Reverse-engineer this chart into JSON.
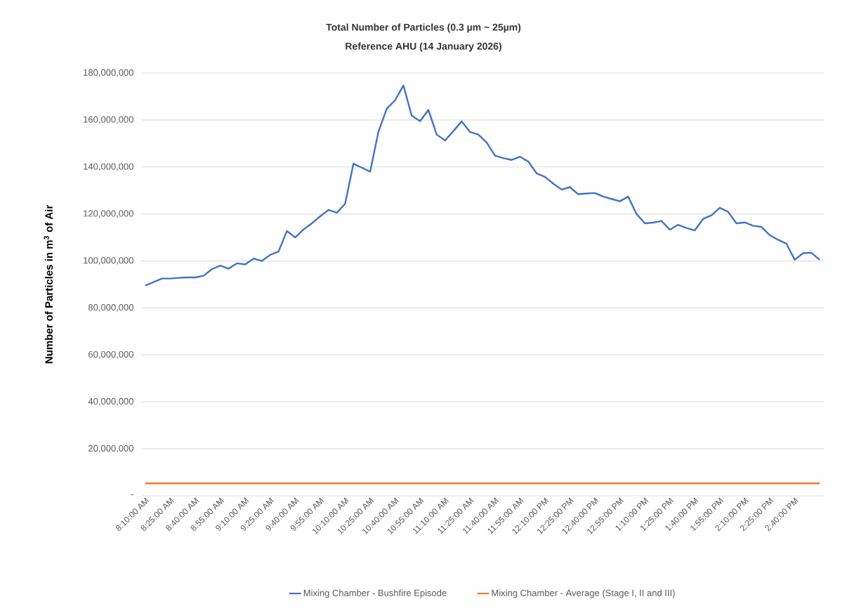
{
  "chart_data": {
    "type": "line",
    "title": "Total Number of Particles (0.3 µm ~ 25µm)",
    "subtitle": "Reference AHU (14 January 2026)",
    "ylabel": "Number of Particles in m$^{3}$ of Air",
    "categories": [
      "8:10:00 AM",
      null,
      null,
      "8:25:00 AM",
      null,
      null,
      "8:40:00 AM",
      null,
      null,
      "8:55:00 AM",
      null,
      null,
      "9:10:00 AM",
      null,
      null,
      "9:25:00 AM",
      null,
      null,
      "9:40:00 AM",
      null,
      null,
      "9:55:00 AM",
      null,
      null,
      "10:10:00 AM",
      null,
      null,
      "10:25:00 AM",
      null,
      null,
      "10:40:00 AM",
      null,
      null,
      "10:55:00 AM",
      null,
      null,
      "11:10:00 AM",
      null,
      null,
      "11:25:00 AM",
      null,
      null,
      "11:40:00 AM",
      null,
      null,
      "11:55:00 AM",
      null,
      null,
      "12:10:00 PM",
      null,
      null,
      "12:25:00 PM",
      null,
      null,
      "12:40:00 PM",
      null,
      null,
      "12:55:00 PM",
      null,
      null,
      "1:10:00 PM",
      null,
      null,
      "1:25:00 PM",
      null,
      null,
      "1:40:00 PM",
      null,
      null,
      "1:55:00 PM",
      null,
      null,
      "2:10:00 PM",
      null,
      null,
      "2:25:00 PM",
      null,
      null,
      "2:40:00 PM",
      null,
      null,
      null
    ],
    "series": [
      {
        "name": "Mixing Chamber - Bushfire Episode",
        "color": "#4472c4",
        "values": [
          89500000,
          91000000,
          92500000,
          92500000,
          92800000,
          93000000,
          93000000,
          93700000,
          96500000,
          98000000,
          96700000,
          99000000,
          98500000,
          101000000,
          100000000,
          102600000,
          104000000,
          112700000,
          110000000,
          113400000,
          116000000,
          119000000,
          121700000,
          120500000,
          124400000,
          141400000,
          139700000,
          138000000,
          155000000,
          164800000,
          168400000,
          174700000,
          161800000,
          159500000,
          164300000,
          153800000,
          151300000,
          155300000,
          159400000,
          154900000,
          153800000,
          150400000,
          144800000,
          143800000,
          143000000,
          144400000,
          142300000,
          137300000,
          135800000,
          132900000,
          130400000,
          131400000,
          128400000,
          128700000,
          128900000,
          127400000,
          126400000,
          125400000,
          127400000,
          120000000,
          116000000,
          116300000,
          117000000,
          113300000,
          115400000,
          114000000,
          113000000,
          117900000,
          119400000,
          122600000,
          120900000,
          116000000,
          116400000,
          115000000,
          114500000,
          111000000,
          109000000,
          107400000,
          100500000,
          103300000,
          103500000,
          100500000
        ]
      },
      {
        "name": "Mixing Chamber - Average (Stage I, II and III)",
        "color": "#ed7d31",
        "values": [
          5300000,
          5300000,
          5300000,
          5300000,
          5300000,
          5300000,
          5300000,
          5300000,
          5300000,
          5300000,
          5300000,
          5300000,
          5300000,
          5300000,
          5300000,
          5300000,
          5300000,
          5300000,
          5300000,
          5300000,
          5300000,
          5300000,
          5300000,
          5300000,
          5300000,
          5300000,
          5300000,
          5300000,
          5300000,
          5300000,
          5300000,
          5300000,
          5300000,
          5300000,
          5300000,
          5300000,
          5300000,
          5300000,
          5300000,
          5300000,
          5300000,
          5300000,
          5300000,
          5300000,
          5300000,
          5300000,
          5300000,
          5300000,
          5300000,
          5300000,
          5300000,
          5300000,
          5300000,
          5300000,
          5300000,
          5300000,
          5300000,
          5300000,
          5300000,
          5300000,
          5300000,
          5300000,
          5300000,
          5300000,
          5300000,
          5300000,
          5300000,
          5300000,
          5300000,
          5300000,
          5300000,
          5300000,
          5300000,
          5300000,
          5300000,
          5300000,
          5300000,
          5300000,
          5300000,
          5300000,
          5300000,
          5300000
        ]
      }
    ],
    "ylim": [
      0,
      180000000
    ],
    "yticks": [
      {
        "value": 0,
        "label": "-"
      },
      {
        "value": 20000000,
        "label": "20,000,000"
      },
      {
        "value": 40000000,
        "label": "40,000,000"
      },
      {
        "value": 60000000,
        "label": "60,000,000"
      },
      {
        "value": 80000000,
        "label": "80,000,000"
      },
      {
        "value": 100000000,
        "label": "100,000,000"
      },
      {
        "value": 120000000,
        "label": "120,000,000"
      },
      {
        "value": 140000000,
        "label": "140,000,000"
      },
      {
        "value": 160000000,
        "label": "160,000,000"
      },
      {
        "value": 180000000,
        "label": "180,000,000"
      }
    ],
    "grid": "y",
    "legend": "bottom"
  }
}
